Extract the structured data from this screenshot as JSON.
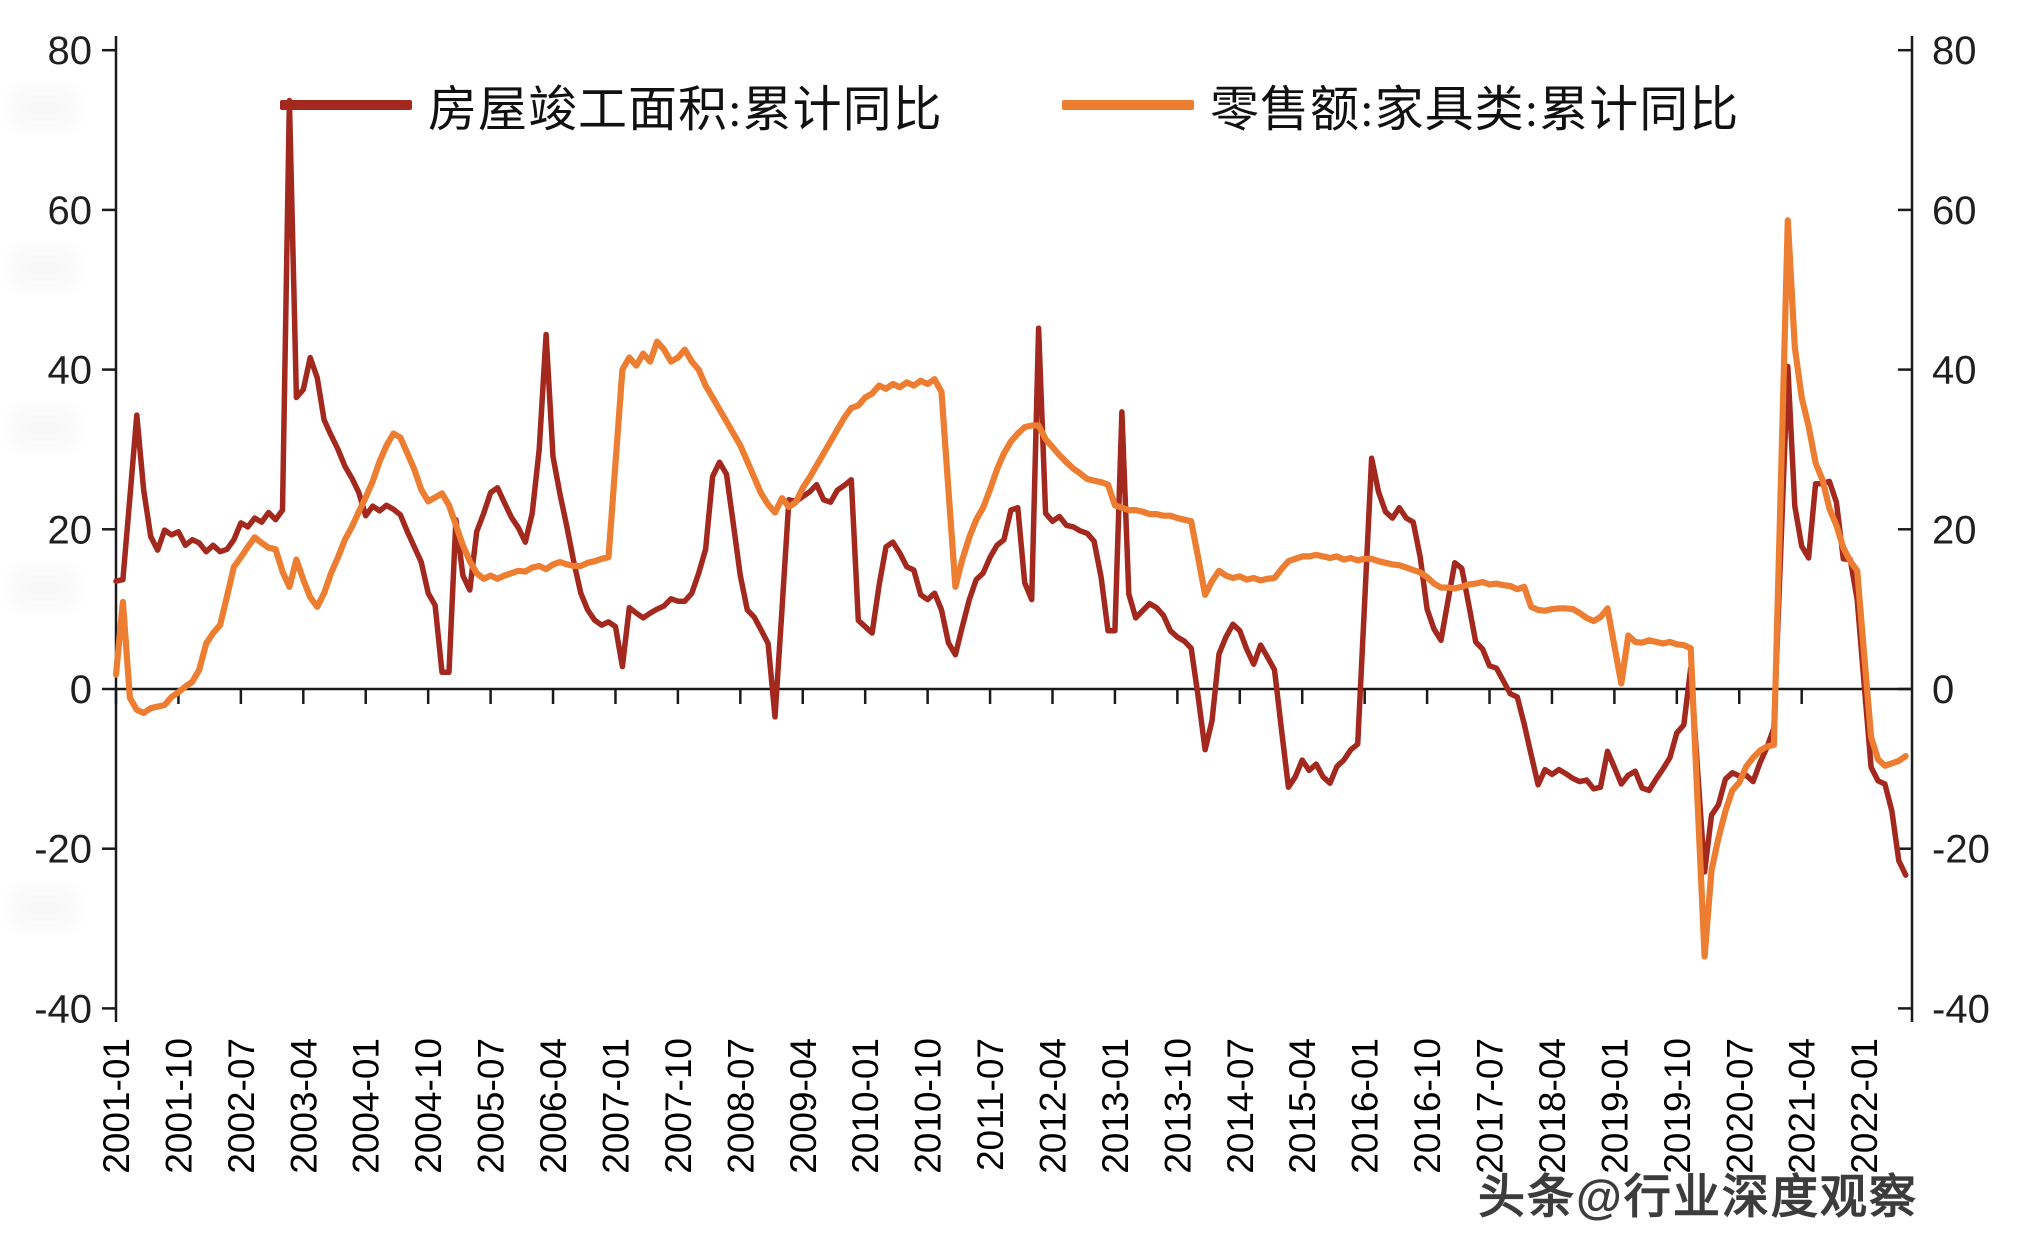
{
  "chart_data": {
    "type": "line",
    "title": "",
    "x_start": "2001-01",
    "x_interval": "monthly",
    "x_end": "2022-07",
    "x_tick_labels": [
      "2001-01",
      "2001-10",
      "2002-07",
      "2003-04",
      "2004-01",
      "2004-10",
      "2005-07",
      "2006-04",
      "2007-01",
      "2007-10",
      "2008-07",
      "2009-04",
      "2010-01",
      "2010-10",
      "2011-07",
      "2012-04",
      "2013-01",
      "2013-10",
      "2014-07",
      "2015-04",
      "2016-01",
      "2016-10",
      "2017-07",
      "2018-04",
      "2019-01",
      "2019-10",
      "2020-07",
      "2021-04",
      "2022-01"
    ],
    "x_tick_every_months": 9,
    "y_ticks": [
      80,
      60,
      40,
      20,
      0,
      -20,
      -40
    ],
    "ylim": [
      -40,
      80
    ],
    "y_axis_sides": "both",
    "grid": "off",
    "legend_position": "top",
    "series": [
      {
        "name": "房屋竣工面积:累计同比",
        "color": "#A3281E",
        "values": [
          13.5,
          13.7,
          24.0,
          34.3,
          24.9,
          19.1,
          17.4,
          19.9,
          19.3,
          19.7,
          18.0,
          18.7,
          18.3,
          17.2,
          18.0,
          17.2,
          17.5,
          18.7,
          20.8,
          20.3,
          21.4,
          20.9,
          22.1,
          21.2,
          22.4,
          73.7,
          36.5,
          37.5,
          41.5,
          39.0,
          33.7,
          31.8,
          30.0,
          27.9,
          26.4,
          24.6,
          21.7,
          22.9,
          22.3,
          23.0,
          22.5,
          21.8,
          19.7,
          17.8,
          15.9,
          12.0,
          10.5,
          2.1,
          2.1,
          21.2,
          14.2,
          12.4,
          19.7,
          22.0,
          24.6,
          25.2,
          23.3,
          21.5,
          20.2,
          18.4,
          22.0,
          30.0,
          44.4,
          29.1,
          24.4,
          20.3,
          15.9,
          12.0,
          9.9,
          8.6,
          8.0,
          8.4,
          7.8,
          2.8,
          10.2,
          9.5,
          8.9,
          9.5,
          10.0,
          10.4,
          11.3,
          11.0,
          11.0,
          12.0,
          14.5,
          17.5,
          26.6,
          28.4,
          26.9,
          20.6,
          14.2,
          9.9,
          9.0,
          7.4,
          5.7,
          -3.5,
          10.0,
          23.7,
          23.5,
          24.1,
          24.7,
          25.6,
          23.7,
          23.4,
          24.9,
          25.5,
          26.2,
          8.6,
          7.8,
          7.0,
          13.0,
          17.8,
          18.4,
          17.0,
          15.3,
          14.9,
          11.8,
          11.2,
          12.0,
          9.9,
          5.8,
          4.3,
          7.8,
          11.2,
          13.7,
          14.5,
          16.5,
          18.0,
          18.7,
          22.4,
          22.7,
          13.3,
          11.2,
          45.2,
          22.0,
          21.0,
          21.6,
          20.5,
          20.3,
          19.8,
          19.5,
          18.5,
          14.0,
          7.3,
          7.3,
          34.7,
          11.9,
          8.9,
          9.8,
          10.7,
          10.2,
          9.2,
          7.3,
          6.5,
          6.0,
          5.1,
          -1.0,
          -7.6,
          -4.0,
          4.4,
          6.5,
          8.1,
          7.3,
          5.0,
          3.1,
          5.5,
          4.0,
          2.4,
          -5.0,
          -12.3,
          -11.0,
          -8.9,
          -10.2,
          -9.4,
          -11.0,
          -11.8,
          -9.7,
          -8.9,
          -7.6,
          -6.9,
          11.0,
          28.9,
          24.7,
          22.2,
          21.4,
          22.7,
          21.4,
          20.9,
          16.5,
          10.0,
          7.5,
          6.1,
          11.0,
          15.8,
          15.1,
          10.6,
          5.9,
          5.0,
          2.9,
          2.6,
          1.0,
          -0.6,
          -1.0,
          -4.4,
          -8.2,
          -12.0,
          -10.1,
          -10.7,
          -10.1,
          -10.6,
          -11.2,
          -11.6,
          -11.4,
          -12.5,
          -12.3,
          -7.8,
          -9.8,
          -11.9,
          -10.8,
          -10.3,
          -12.4,
          -12.7,
          -11.3,
          -10.0,
          -8.6,
          -5.5,
          -4.5,
          2.6,
          -10.2,
          -22.9,
          -15.8,
          -14.5,
          -11.3,
          -10.5,
          -10.9,
          -10.8,
          -11.6,
          -9.2,
          -7.3,
          -4.9,
          17.8,
          40.4,
          22.9,
          17.9,
          16.4,
          25.7,
          25.7,
          26.0,
          23.4,
          16.3,
          16.2,
          11.2,
          0.7,
          -9.8,
          -11.5,
          -11.9,
          -15.3,
          -21.5,
          -23.3
        ]
      },
      {
        "name": "零售额:家具类:累计同比",
        "color": "#ED7D31",
        "values": [
          1.8,
          10.9,
          -1.1,
          -2.6,
          -3.0,
          -2.4,
          -2.2,
          -2.0,
          -1.0,
          -0.4,
          0.3,
          0.9,
          2.4,
          5.7,
          7.0,
          8.0,
          11.6,
          15.3,
          16.5,
          17.8,
          19.0,
          18.3,
          17.7,
          17.5,
          14.7,
          12.8,
          16.2,
          13.7,
          11.5,
          10.3,
          12.0,
          14.5,
          16.5,
          18.7,
          20.3,
          22.2,
          24.0,
          26.0,
          28.5,
          30.5,
          32.0,
          31.5,
          29.5,
          27.5,
          25.0,
          23.5,
          24.0,
          24.5,
          23.0,
          20.5,
          18.0,
          16.0,
          14.5,
          13.8,
          14.2,
          13.8,
          14.2,
          14.5,
          14.8,
          14.7,
          15.2,
          15.4,
          15.0,
          15.6,
          15.9,
          15.6,
          15.4,
          15.4,
          15.8,
          16.0,
          16.3,
          16.5,
          28.3,
          40.0,
          41.5,
          40.5,
          42.0,
          41.0,
          43.5,
          42.5,
          41.0,
          41.5,
          42.5,
          41.0,
          40.0,
          38.0,
          36.5,
          35.0,
          33.5,
          32.0,
          30.5,
          28.5,
          26.5,
          24.5,
          23.1,
          22.1,
          23.9,
          22.8,
          23.4,
          25.2,
          26.5,
          28.0,
          29.5,
          31.0,
          32.5,
          34.0,
          35.2,
          35.5,
          36.5,
          37.0,
          38.0,
          37.6,
          38.2,
          37.8,
          38.4,
          38.0,
          38.6,
          38.2,
          38.8,
          37.2,
          25.0,
          12.8,
          16.2,
          19.0,
          21.2,
          22.7,
          25.0,
          27.5,
          29.5,
          31.0,
          32.0,
          32.8,
          33.0,
          33.0,
          31.3,
          30.3,
          29.3,
          28.4,
          27.6,
          27.0,
          26.3,
          26.1,
          25.9,
          25.6,
          23.0,
          22.7,
          22.4,
          22.4,
          22.2,
          21.9,
          21.9,
          21.7,
          21.7,
          21.4,
          21.2,
          21.0,
          16.4,
          11.8,
          13.5,
          14.8,
          14.2,
          13.9,
          14.1,
          13.7,
          13.9,
          13.6,
          13.8,
          13.9,
          15.0,
          16.0,
          16.3,
          16.6,
          16.6,
          16.8,
          16.6,
          16.4,
          16.6,
          16.2,
          16.4,
          16.1,
          16.3,
          16.3,
          16.0,
          15.8,
          15.6,
          15.5,
          15.2,
          14.9,
          14.6,
          14.0,
          13.2,
          12.7,
          12.7,
          12.6,
          12.8,
          13.1,
          13.2,
          13.4,
          13.1,
          13.2,
          13.0,
          12.9,
          12.5,
          12.8,
          10.3,
          9.9,
          9.8,
          10.0,
          10.1,
          10.1,
          10.0,
          9.5,
          8.9,
          8.5,
          9.0,
          10.1,
          5.4,
          0.7,
          6.7,
          5.9,
          5.8,
          6.1,
          5.9,
          5.7,
          5.9,
          5.6,
          5.5,
          5.1,
          -14.2,
          -33.5,
          -22.7,
          -18.7,
          -15.3,
          -12.7,
          -11.7,
          -9.7,
          -8.6,
          -7.7,
          -7.2,
          -7.0,
          25.9,
          58.7,
          42.8,
          36.5,
          32.9,
          28.3,
          26.2,
          22.6,
          20.5,
          17.7,
          16.0,
          14.8,
          4.4,
          -6.0,
          -8.8,
          -9.6,
          -9.3,
          -9.0,
          -8.4
        ]
      }
    ]
  },
  "legend": {
    "items": [
      {
        "label": "房屋竣工面积:累计同比",
        "color": "#A3281E"
      },
      {
        "label": "零售额:家具类:累计同比",
        "color": "#ED7D31"
      }
    ]
  },
  "watermark": {
    "text": "头条@行业深度观察"
  },
  "axis_style": {
    "line_color": "#1a1a1a",
    "tick_label_color": "#1f1f1f"
  }
}
